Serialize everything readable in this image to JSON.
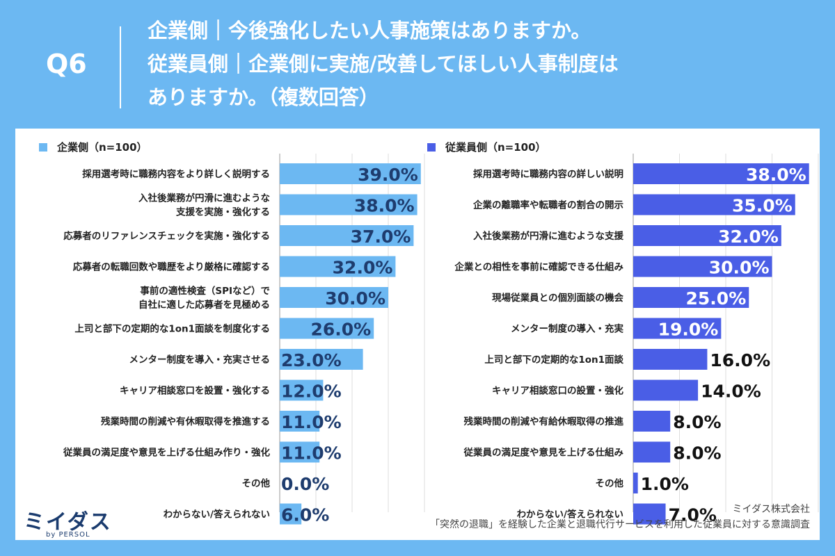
{
  "header": {
    "question": "Q6",
    "title_lines": [
      "企業側｜今後強化したい人事施策はありますか。",
      "従業員側｜企業側に実施/改善してほしい人事制度は",
      "ありますか。（複数回答）"
    ]
  },
  "colors": {
    "background": "#6cb8f2",
    "company_bar": "#6cb8f2",
    "employee_bar": "#4a5ee6",
    "company_label": "#1e3c6e",
    "employee_label_inside": "#ffffff",
    "employee_label_outside": "#111111"
  },
  "legend": {
    "company": "企業側（n=100）",
    "employee": "従業員側（n=100）"
  },
  "chart_data": [
    {
      "type": "bar",
      "orientation": "horizontal",
      "series": [
        {
          "name": "企業側（n=100）",
          "values": [
            39.0,
            38.0,
            37.0,
            32.0,
            30.0,
            26.0,
            23.0,
            12.0,
            11.0,
            11.0,
            0.0,
            6.0
          ]
        }
      ],
      "categories": [
        [
          "採用選考時に職務内容をより詳しく説明する"
        ],
        [
          "入社後業務が円滑に進むような",
          "支援を実施・強化する"
        ],
        [
          "応募者のリファレンスチェックを実施・強化する"
        ],
        [
          "応募者の転職回数や職歴をより厳格に確認する"
        ],
        [
          "事前の適性検査（SPIなど）で",
          "自社に適した応募者を見極める"
        ],
        [
          "上司と部下の定期的な1on1面談を制度化する"
        ],
        [
          "メンター制度を導入・充実させる"
        ],
        [
          "キャリア相談窓口を設置・強化する"
        ],
        [
          "残業時間の削減や有休暇取得を推進する"
        ],
        [
          "従業員の満足度や意見を上げる仕組み作り・強化"
        ],
        [
          "その他"
        ],
        [
          "わからない/答えられない"
        ]
      ],
      "value_labels": [
        "39.0%",
        "38.0%",
        "37.0%",
        "32.0%",
        "30.0%",
        "26.0%",
        "23.0%",
        "12.0%",
        "11.0%",
        "11.0%",
        "0.0%",
        "6.0%"
      ],
      "xlim": [
        0,
        40
      ],
      "grid": true
    },
    {
      "type": "bar",
      "orientation": "horizontal",
      "series": [
        {
          "name": "従業員側（n=100）",
          "values": [
            38.0,
            35.0,
            32.0,
            30.0,
            25.0,
            19.0,
            16.0,
            14.0,
            8.0,
            8.0,
            1.0,
            7.0
          ]
        }
      ],
      "categories": [
        [
          "採用選考時に職務内容の詳しい説明"
        ],
        [
          "企業の離職率や転職者の割合の開示"
        ],
        [
          "入社後業務が円滑に進むような支援"
        ],
        [
          "企業との相性を事前に確認できる仕組み"
        ],
        [
          "現場従業員との個別面談の機会"
        ],
        [
          "メンター制度の導入・充実"
        ],
        [
          "上司と部下の定期的な1on1面談"
        ],
        [
          "キャリア相談窓口の設置・強化"
        ],
        [
          "残業時間の削減や有給休暇取得の推進"
        ],
        [
          "従業員の満足度や意見を上げる仕組み"
        ],
        [
          "その他"
        ],
        [
          "わからない/答えられない"
        ]
      ],
      "value_labels": [
        "38.0%",
        "35.0%",
        "32.0%",
        "30.0%",
        "25.0%",
        "19.0%",
        "16.0%",
        "14.0%",
        "8.0%",
        "8.0%",
        "1.0%",
        "7.0%"
      ],
      "xlim": [
        0,
        40
      ],
      "grid": true
    }
  ],
  "logo": {
    "name": "ミイダス",
    "byline": "by PERSOL"
  },
  "credit": {
    "company": "ミイダス株式会社",
    "survey": "「突然の退職」を経験した企業と退職代行サービスを利用した従業員に対する意識調査"
  }
}
